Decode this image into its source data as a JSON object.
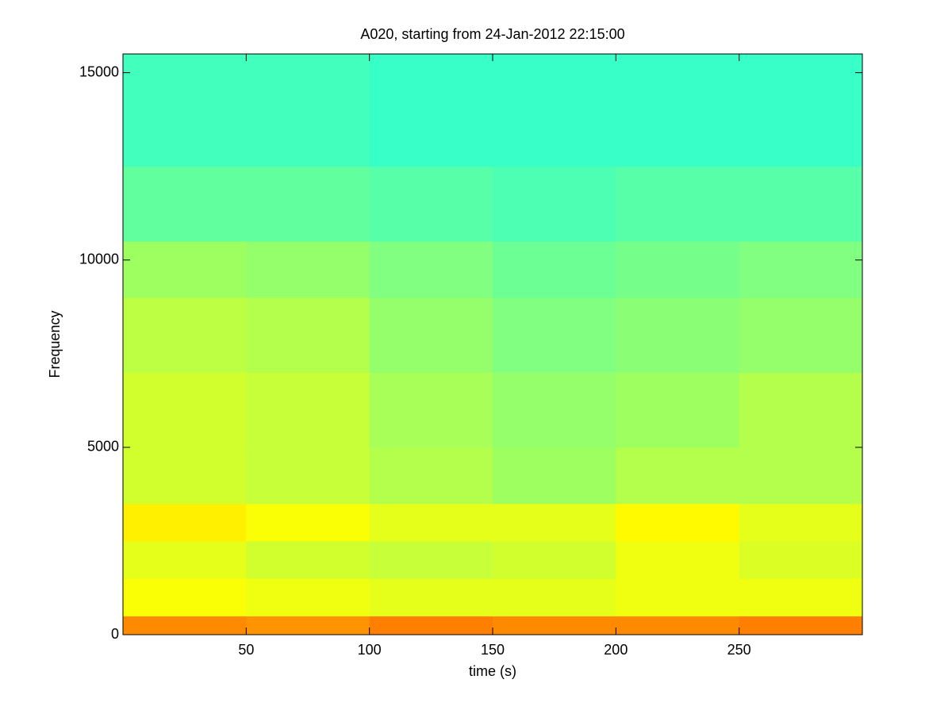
{
  "chart_data": {
    "type": "heatmap",
    "title": "A020, starting from 24-Jan-2012 22:15:00",
    "x_label": "time (s)",
    "y_label": "Frequency",
    "colormap": "jet",
    "clim": [
      0,
      1
    ],
    "x": [
      0,
      50,
      100,
      150,
      200,
      250,
      300
    ],
    "y": [
      0,
      500,
      1500,
      2500,
      3500,
      5000,
      7000,
      9000,
      10500,
      12500,
      15500
    ],
    "z": [
      [
        0.74,
        0.73,
        0.75,
        0.74,
        0.74,
        0.75
      ],
      [
        0.62,
        0.61,
        0.6,
        0.6,
        0.61,
        0.61
      ],
      [
        0.6,
        0.58,
        0.57,
        0.58,
        0.61,
        0.59
      ],
      [
        0.64,
        0.62,
        0.6,
        0.6,
        0.63,
        0.6
      ],
      [
        0.58,
        0.57,
        0.55,
        0.53,
        0.55,
        0.55
      ],
      [
        0.58,
        0.57,
        0.54,
        0.52,
        0.53,
        0.55
      ],
      [
        0.56,
        0.55,
        0.52,
        0.5,
        0.51,
        0.52
      ],
      [
        0.53,
        0.52,
        0.5,
        0.48,
        0.49,
        0.5
      ],
      [
        0.47,
        0.47,
        0.46,
        0.45,
        0.46,
        0.46
      ],
      [
        0.44,
        0.44,
        0.43,
        0.43,
        0.43,
        0.43
      ]
    ],
    "xlim": [
      0,
      300
    ],
    "ylim": [
      0,
      15500
    ],
    "xticks": [
      50,
      100,
      150,
      200,
      250
    ],
    "yticks": [
      0,
      5000,
      10000,
      15000
    ]
  }
}
